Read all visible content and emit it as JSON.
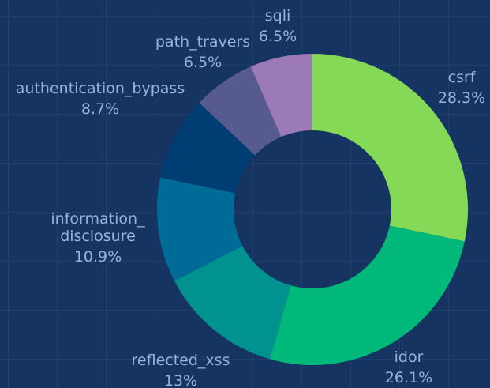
{
  "chart_data": {
    "type": "donut",
    "categories": [
      "csrf",
      "idor",
      "reflected_xss",
      "information_ disclosure",
      "authentication_bypass",
      "path_travers",
      "sqli"
    ],
    "values": [
      28.3,
      26.1,
      13,
      10.9,
      8.7,
      6.5,
      6.5
    ],
    "value_labels": [
      "28.3%",
      "26.1%",
      "13%",
      "10.9%",
      "8.7%",
      "6.5%",
      "6.5%"
    ],
    "colors": [
      "#84d957",
      "#00b87a",
      "#00928f",
      "#006b96",
      "#003d73",
      "#575a8f",
      "#9c7ab5"
    ]
  }
}
